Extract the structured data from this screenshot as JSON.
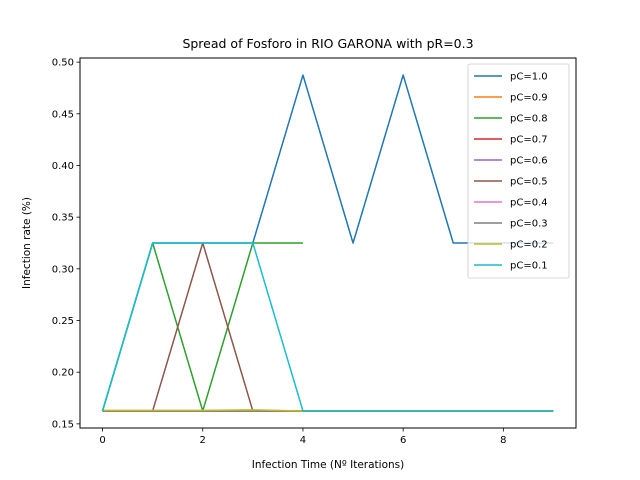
{
  "chart_data": {
    "type": "line",
    "title": "Spread of Fosforo in RIO GARONA with pR=0.3",
    "xlabel": "Infection Time (Nº Iterations)",
    "ylabel": "Infection rate (%)",
    "xlim": [
      -0.45,
      9.45
    ],
    "ylim": [
      0.146,
      0.504
    ],
    "xticks": [
      0,
      2,
      4,
      6,
      8
    ],
    "yticks": [
      0.15,
      0.2,
      0.25,
      0.3,
      0.35,
      0.4,
      0.45,
      0.5
    ],
    "ytick_labels": [
      "0.15",
      "0.20",
      "0.25",
      "0.30",
      "0.35",
      "0.40",
      "0.45",
      "0.50"
    ],
    "legend_position": "top-right",
    "grid": false,
    "series": [
      {
        "name": "pC=1.0",
        "color": "#1f77b4",
        "x": [
          0,
          1,
          2,
          3,
          4,
          5,
          6,
          7,
          8,
          9
        ],
        "values": [
          0.1625,
          0.325,
          0.325,
          0.325,
          0.4875,
          0.325,
          0.4875,
          0.325,
          0.325,
          0.325
        ]
      },
      {
        "name": "pC=0.9",
        "color": "#ff7f0e",
        "x": [
          0,
          1,
          2,
          3,
          4,
          5,
          6,
          7,
          8,
          9
        ],
        "values": [
          0.1625,
          0.1625,
          0.1625,
          0.1625,
          0.1625,
          0.1625,
          0.1625,
          0.1625,
          0.1625,
          0.1625
        ]
      },
      {
        "name": "pC=0.8",
        "color": "#2ca02c",
        "x": [
          0,
          1,
          2,
          3,
          4
        ],
        "values": [
          0.1625,
          0.325,
          0.1625,
          0.325,
          0.325
        ]
      },
      {
        "name": "pC=0.7",
        "color": "#d62728",
        "x": [
          0,
          1,
          2,
          3,
          4,
          5,
          6,
          7,
          8,
          9
        ],
        "values": [
          0.1625,
          0.1625,
          0.1625,
          0.1625,
          0.1625,
          0.1625,
          0.1625,
          0.1625,
          0.1625,
          0.1625
        ]
      },
      {
        "name": "pC=0.6",
        "color": "#9467bd",
        "x": [
          0,
          1,
          2,
          3,
          4,
          5,
          6,
          7,
          8,
          9
        ],
        "values": [
          0.1625,
          0.1625,
          0.1625,
          0.1625,
          0.1625,
          0.1625,
          0.1625,
          0.1625,
          0.1625,
          0.1625
        ]
      },
      {
        "name": "pC=0.5",
        "color": "#8c564b",
        "x": [
          0,
          1,
          2,
          3,
          4,
          5,
          6
        ],
        "values": [
          0.1625,
          0.1625,
          0.325,
          0.1625,
          0.1625,
          0.1625,
          0.1625
        ]
      },
      {
        "name": "pC=0.4",
        "color": "#e377c2",
        "x": [
          0,
          1,
          2,
          3,
          4,
          5,
          6,
          7,
          8,
          9
        ],
        "values": [
          0.1625,
          0.1625,
          0.1625,
          0.1625,
          0.1625,
          0.1625,
          0.1625,
          0.1625,
          0.1625,
          0.1625
        ]
      },
      {
        "name": "pC=0.3",
        "color": "#7f7f7f",
        "x": [
          0,
          1,
          2,
          3,
          4,
          5,
          6,
          7,
          8,
          9
        ],
        "values": [
          0.1625,
          0.1625,
          0.1625,
          0.1625,
          0.1625,
          0.1625,
          0.1625,
          0.1625,
          0.1625,
          0.1625
        ]
      },
      {
        "name": "pC=0.2",
        "color": "#bcbd22",
        "x": [
          0,
          1,
          2,
          3,
          4,
          5,
          6,
          7,
          8,
          9
        ],
        "values": [
          0.163,
          0.163,
          0.163,
          0.1635,
          0.1625,
          0.1625,
          0.1625,
          0.1625,
          0.1625,
          0.1625
        ]
      },
      {
        "name": "pC=0.1",
        "color": "#17becf",
        "x": [
          0,
          1,
          2,
          3,
          4,
          5,
          6,
          7,
          8,
          9
        ],
        "values": [
          0.1625,
          0.325,
          0.325,
          0.325,
          0.1625,
          0.1625,
          0.1625,
          0.1625,
          0.1625,
          0.1625
        ]
      }
    ]
  }
}
